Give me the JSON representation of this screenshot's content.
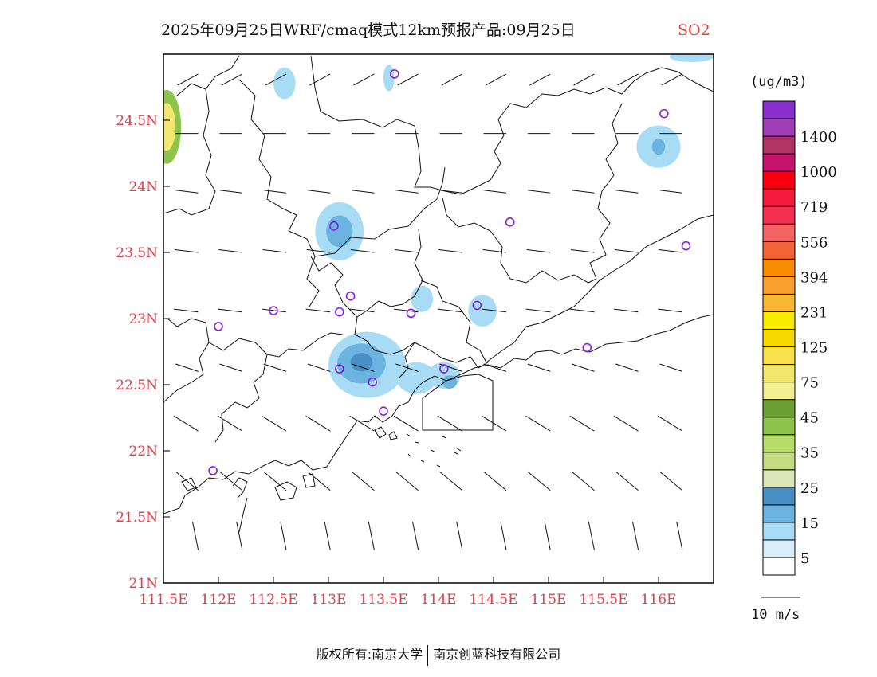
{
  "title": {
    "main": "2025年09月25日WRF/cmaq模式12km预报产品:09月25日",
    "variable": "SO2"
  },
  "map": {
    "lon_range": [
      111.5,
      116.5
    ],
    "lat_range": [
      21.0,
      25.0
    ],
    "x_ticks": [
      {
        "lon": 111.5,
        "label": "111.5E"
      },
      {
        "lon": 112.0,
        "label": "112E"
      },
      {
        "lon": 112.5,
        "label": "112.5E"
      },
      {
        "lon": 113.0,
        "label": "113E"
      },
      {
        "lon": 113.5,
        "label": "113.5E"
      },
      {
        "lon": 114.0,
        "label": "114E"
      },
      {
        "lon": 114.5,
        "label": "114.5E"
      },
      {
        "lon": 115.0,
        "label": "115E"
      },
      {
        "lon": 115.5,
        "label": "115.5E"
      },
      {
        "lon": 116.0,
        "label": "116E"
      }
    ],
    "y_ticks": [
      {
        "lat": 24.5,
        "label": "24.5N"
      },
      {
        "lat": 24.0,
        "label": "24N"
      },
      {
        "lat": 23.5,
        "label": "23.5N"
      },
      {
        "lat": 23.0,
        "label": "23N"
      },
      {
        "lat": 22.5,
        "label": "22.5N"
      },
      {
        "lat": 22.0,
        "label": "22N"
      },
      {
        "lat": 21.5,
        "label": "21.5N"
      },
      {
        "lat": 21.0,
        "label": "21N"
      }
    ],
    "stations": [
      {
        "lon": 113.6,
        "lat": 24.85
      },
      {
        "lon": 116.05,
        "lat": 24.55
      },
      {
        "lon": 113.05,
        "lat": 23.7
      },
      {
        "lon": 114.65,
        "lat": 23.73
      },
      {
        "lon": 116.25,
        "lat": 23.55
      },
      {
        "lon": 113.2,
        "lat": 23.17
      },
      {
        "lon": 112.5,
        "lat": 23.06
      },
      {
        "lon": 113.1,
        "lat": 23.05
      },
      {
        "lon": 113.75,
        "lat": 23.04
      },
      {
        "lon": 114.35,
        "lat": 23.1
      },
      {
        "lon": 112.0,
        "lat": 22.94
      },
      {
        "lon": 115.35,
        "lat": 22.78
      },
      {
        "lon": 113.1,
        "lat": 22.62
      },
      {
        "lon": 114.05,
        "lat": 22.62
      },
      {
        "lon": 113.4,
        "lat": 22.52
      },
      {
        "lon": 113.5,
        "lat": 22.3
      },
      {
        "lon": 111.95,
        "lat": 21.85
      }
    ],
    "concentration_patches": [
      {
        "lon": 111.53,
        "lat": 24.45,
        "rx": 0.13,
        "ry": 0.28,
        "level": 45
      },
      {
        "lon": 111.53,
        "lat": 24.45,
        "rx": 0.08,
        "ry": 0.18,
        "level": 75
      },
      {
        "lon": 112.6,
        "lat": 24.78,
        "rx": 0.1,
        "ry": 0.12,
        "level": 5
      },
      {
        "lon": 113.55,
        "lat": 24.82,
        "rx": 0.05,
        "ry": 0.1,
        "level": 5
      },
      {
        "lon": 113.1,
        "lat": 23.66,
        "rx": 0.22,
        "ry": 0.22,
        "level": 5
      },
      {
        "lon": 113.1,
        "lat": 23.66,
        "rx": 0.12,
        "ry": 0.12,
        "level": 15
      },
      {
        "lon": 116.0,
        "lat": 24.3,
        "rx": 0.2,
        "ry": 0.16,
        "level": 5
      },
      {
        "lon": 116.0,
        "lat": 24.3,
        "rx": 0.06,
        "ry": 0.06,
        "level": 15
      },
      {
        "lon": 114.4,
        "lat": 23.06,
        "rx": 0.13,
        "ry": 0.12,
        "level": 5
      },
      {
        "lon": 113.85,
        "lat": 23.15,
        "rx": 0.1,
        "ry": 0.1,
        "level": 5
      },
      {
        "lon": 113.35,
        "lat": 22.65,
        "rx": 0.35,
        "ry": 0.25,
        "level": 5
      },
      {
        "lon": 113.3,
        "lat": 22.66,
        "rx": 0.22,
        "ry": 0.15,
        "level": 15
      },
      {
        "lon": 113.3,
        "lat": 22.67,
        "rx": 0.1,
        "ry": 0.07,
        "level": 25
      },
      {
        "lon": 113.8,
        "lat": 22.55,
        "rx": 0.18,
        "ry": 0.12,
        "level": 5
      },
      {
        "lon": 114.05,
        "lat": 22.57,
        "rx": 0.15,
        "ry": 0.1,
        "level": 5
      },
      {
        "lon": 114.1,
        "lat": 22.52,
        "rx": 0.07,
        "ry": 0.05,
        "level": 15
      },
      {
        "lon": 116.3,
        "lat": 24.98,
        "rx": 0.2,
        "ry": 0.04,
        "level": 5
      }
    ],
    "wind": {
      "lons": [
        111.7,
        112.1,
        112.5,
        112.9,
        113.3,
        113.7,
        114.1,
        114.5,
        114.9,
        115.3,
        115.7,
        116.1
      ],
      "lats": [
        24.85,
        24.4,
        23.95,
        23.5,
        23.05,
        22.6,
        22.15,
        21.7,
        21.25
      ],
      "rows": [
        {
          "u": -2.2,
          "v": -1.2
        },
        {
          "u": -2.4,
          "v": 0
        },
        {
          "u": -2.4,
          "v": 0.3
        },
        {
          "u": -2.5,
          "v": 0.3
        },
        {
          "u": -2.6,
          "v": 0.3
        },
        {
          "u": -2.4,
          "v": 0.8
        },
        {
          "u": -2.6,
          "v": 1.6
        },
        {
          "u": -2.4,
          "v": 2.0
        },
        {
          "u": -0.6,
          "v": 3.0
        }
      ]
    }
  },
  "colorbar": {
    "units": "(ug/m3)",
    "colors": [
      "#ffffff",
      "#d9eef8",
      "#a8dcf4",
      "#6bb3e0",
      "#4a8fc4",
      "#dce8b8",
      "#c3db83",
      "#b8dc6a",
      "#8ec44c",
      "#6aa034",
      "#f2f090",
      "#f2e66c",
      "#f8e14c",
      "#f7d900",
      "#f6ec00",
      "#f8b834",
      "#f9a030",
      "#f98c00",
      "#f26336",
      "#f46464",
      "#f43050",
      "#f31a3c",
      "#f60010",
      "#c4146c",
      "#b03564",
      "#a33db8",
      "#8a2fd0"
    ],
    "labels": [
      "5",
      "15",
      "25",
      "35",
      "45",
      "75",
      "125",
      "231",
      "394",
      "556",
      "719",
      "1000",
      "1400"
    ]
  },
  "wind_legend": {
    "label": "10 m/s"
  },
  "footer": {
    "left": "版权所有:南京大学",
    "right": "南京创蓝科技有限公司"
  }
}
